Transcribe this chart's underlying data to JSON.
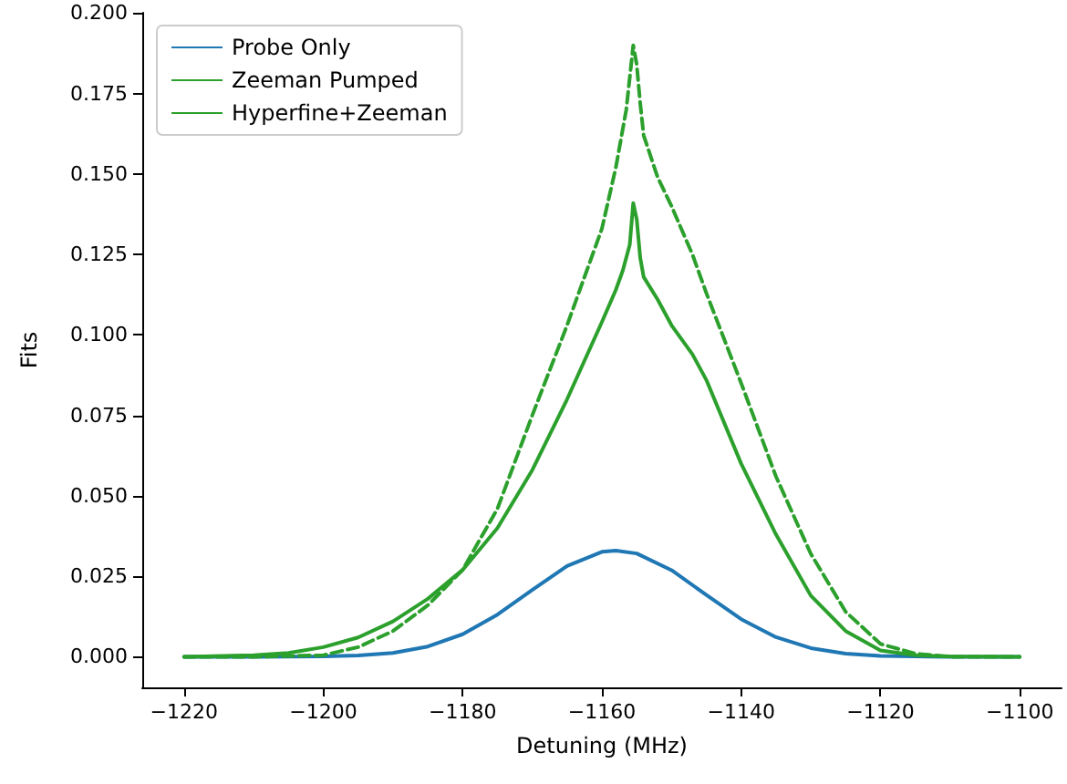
{
  "chart_data": {
    "type": "line",
    "xlabel": "Detuning (MHz)",
    "ylabel": "Fits",
    "xlim": [
      -1226,
      -1094
    ],
    "ylim": [
      -0.0095,
      0.2001
    ],
    "xticks": [
      -1220,
      -1200,
      -1180,
      -1160,
      -1140,
      -1120,
      -1100
    ],
    "yticks": [
      {
        "value": 0,
        "label": "0.000"
      },
      {
        "value": 0.025,
        "label": "0.025"
      },
      {
        "value": 0.05,
        "label": "0.050"
      },
      {
        "value": 0.075,
        "label": "0.075"
      },
      {
        "value": 0.1,
        "label": "0.100"
      },
      {
        "value": 0.125,
        "label": "0.125"
      },
      {
        "value": 0.15,
        "label": "0.150"
      },
      {
        "value": 0.175,
        "label": "0.175"
      },
      {
        "value": 0.2,
        "label": "0.200"
      }
    ],
    "grid": false,
    "legend": "top left",
    "marker": "none",
    "series": [
      {
        "name": "Probe Only",
        "color": "#1f77b4",
        "line_style": "solid",
        "x": [
          -1220,
          -1210,
          -1200,
          -1195,
          -1190,
          -1185,
          -1180,
          -1175,
          -1170,
          -1165,
          -1160,
          -1158,
          -1155,
          -1150,
          -1145,
          -1140,
          -1135,
          -1130,
          -1125,
          -1120,
          -1115,
          -1110,
          -1100
        ],
        "values": [
          0,
          0,
          0.0001,
          0.0004,
          0.0012,
          0.0032,
          0.007,
          0.0131,
          0.0208,
          0.0282,
          0.0326,
          0.033,
          0.0321,
          0.0269,
          0.0192,
          0.0117,
          0.0061,
          0.0027,
          0.001,
          0.0003,
          0.0001,
          0,
          0
        ]
      },
      {
        "name": "Zeeman Pumped",
        "color": "#2ca02c",
        "line_style": "solid",
        "x": [
          -1220,
          -1210,
          -1205,
          -1200,
          -1195,
          -1190,
          -1185,
          -1180,
          -1175,
          -1170,
          -1165,
          -1160,
          -1158,
          -1157,
          -1156,
          -1155.5,
          -1155,
          -1154.5,
          -1154,
          -1152,
          -1150,
          -1147,
          -1145,
          -1140,
          -1135,
          -1130,
          -1125,
          -1120,
          -1115,
          -1110,
          -1100
        ],
        "values": [
          0,
          0.0005,
          0.0012,
          0.003,
          0.006,
          0.011,
          0.018,
          0.027,
          0.04,
          0.058,
          0.08,
          0.104,
          0.114,
          0.12,
          0.128,
          0.141,
          0.136,
          0.124,
          0.118,
          0.111,
          0.103,
          0.094,
          0.086,
          0.06,
          0.038,
          0.019,
          0.008,
          0.002,
          0.0005,
          0.0001,
          0
        ]
      },
      {
        "name": "Hyperfine+Zeeman",
        "color": "#2ca02c",
        "line_style": "dashed",
        "x": [
          -1220,
          -1210,
          -1200,
          -1195,
          -1190,
          -1185,
          -1180,
          -1175,
          -1170,
          -1165,
          -1160,
          -1158,
          -1156.5,
          -1155.5,
          -1155,
          -1154.5,
          -1154,
          -1152,
          -1150,
          -1147,
          -1145,
          -1140,
          -1135,
          -1130,
          -1125,
          -1120,
          -1115,
          -1110,
          -1100
        ],
        "values": [
          0,
          0,
          0.0005,
          0.003,
          0.008,
          0.016,
          0.027,
          0.046,
          0.075,
          0.103,
          0.133,
          0.152,
          0.17,
          0.19,
          0.184,
          0.172,
          0.162,
          0.149,
          0.14,
          0.125,
          0.113,
          0.085,
          0.056,
          0.032,
          0.014,
          0.004,
          0.001,
          0,
          0
        ]
      }
    ]
  }
}
